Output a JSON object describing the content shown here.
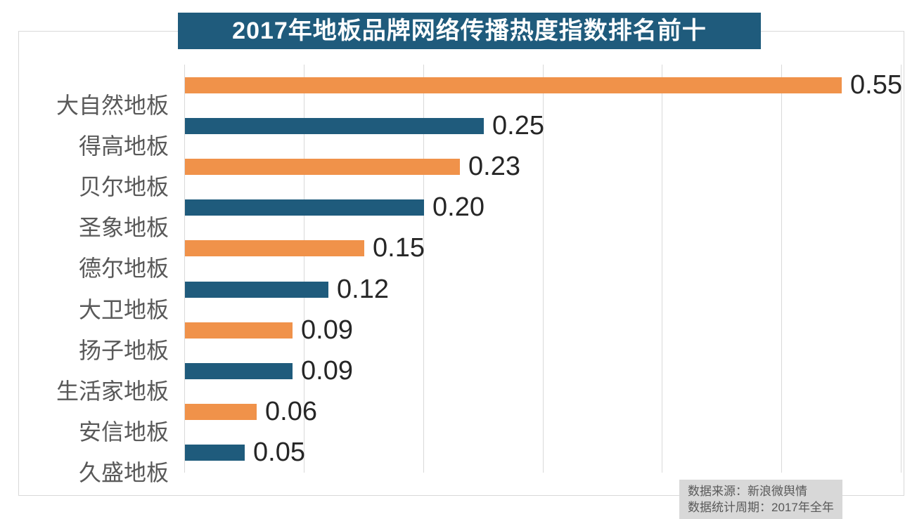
{
  "chart_data": {
    "type": "bar",
    "orientation": "horizontal",
    "title": "2017年地板品牌网络传播热度指数排名前十",
    "categories": [
      "大自然地板",
      "得高地板",
      "贝尔地板",
      "圣象地板",
      "德尔地板",
      "大卫地板",
      "扬子地板",
      "生活家地板",
      "安信地板",
      "久盛地板"
    ],
    "values": [
      0.55,
      0.25,
      0.23,
      0.2,
      0.15,
      0.12,
      0.09,
      0.09,
      0.06,
      0.05
    ],
    "value_labels": [
      "0.55",
      "0.25",
      "0.23",
      "0.20",
      "0.15",
      "0.12",
      "0.09",
      "0.09",
      "0.06",
      "0.05"
    ],
    "bar_colors": [
      "orange",
      "blue",
      "orange",
      "blue",
      "orange",
      "blue",
      "orange",
      "blue",
      "orange",
      "blue"
    ],
    "xlim": [
      0,
      0.6
    ],
    "gridline_interval": 0.1,
    "grid": true,
    "legend": false,
    "xlabel": "",
    "ylabel": ""
  },
  "source_note": {
    "line1": "数据来源：新浪微舆情",
    "line2": "数据统计周期：2017年全年"
  },
  "colors": {
    "orange": "#f0924a",
    "blue": "#1f5b7c",
    "title_bg": "#1f5b7c",
    "title_text": "#ffffff",
    "category_label": "#595959",
    "value_label": "#262626",
    "gridline": "#d9d9d9",
    "frame_border": "#d9d9d9",
    "note_bg": "#d8d8d8",
    "note_text": "#595959",
    "background": "#ffffff"
  }
}
